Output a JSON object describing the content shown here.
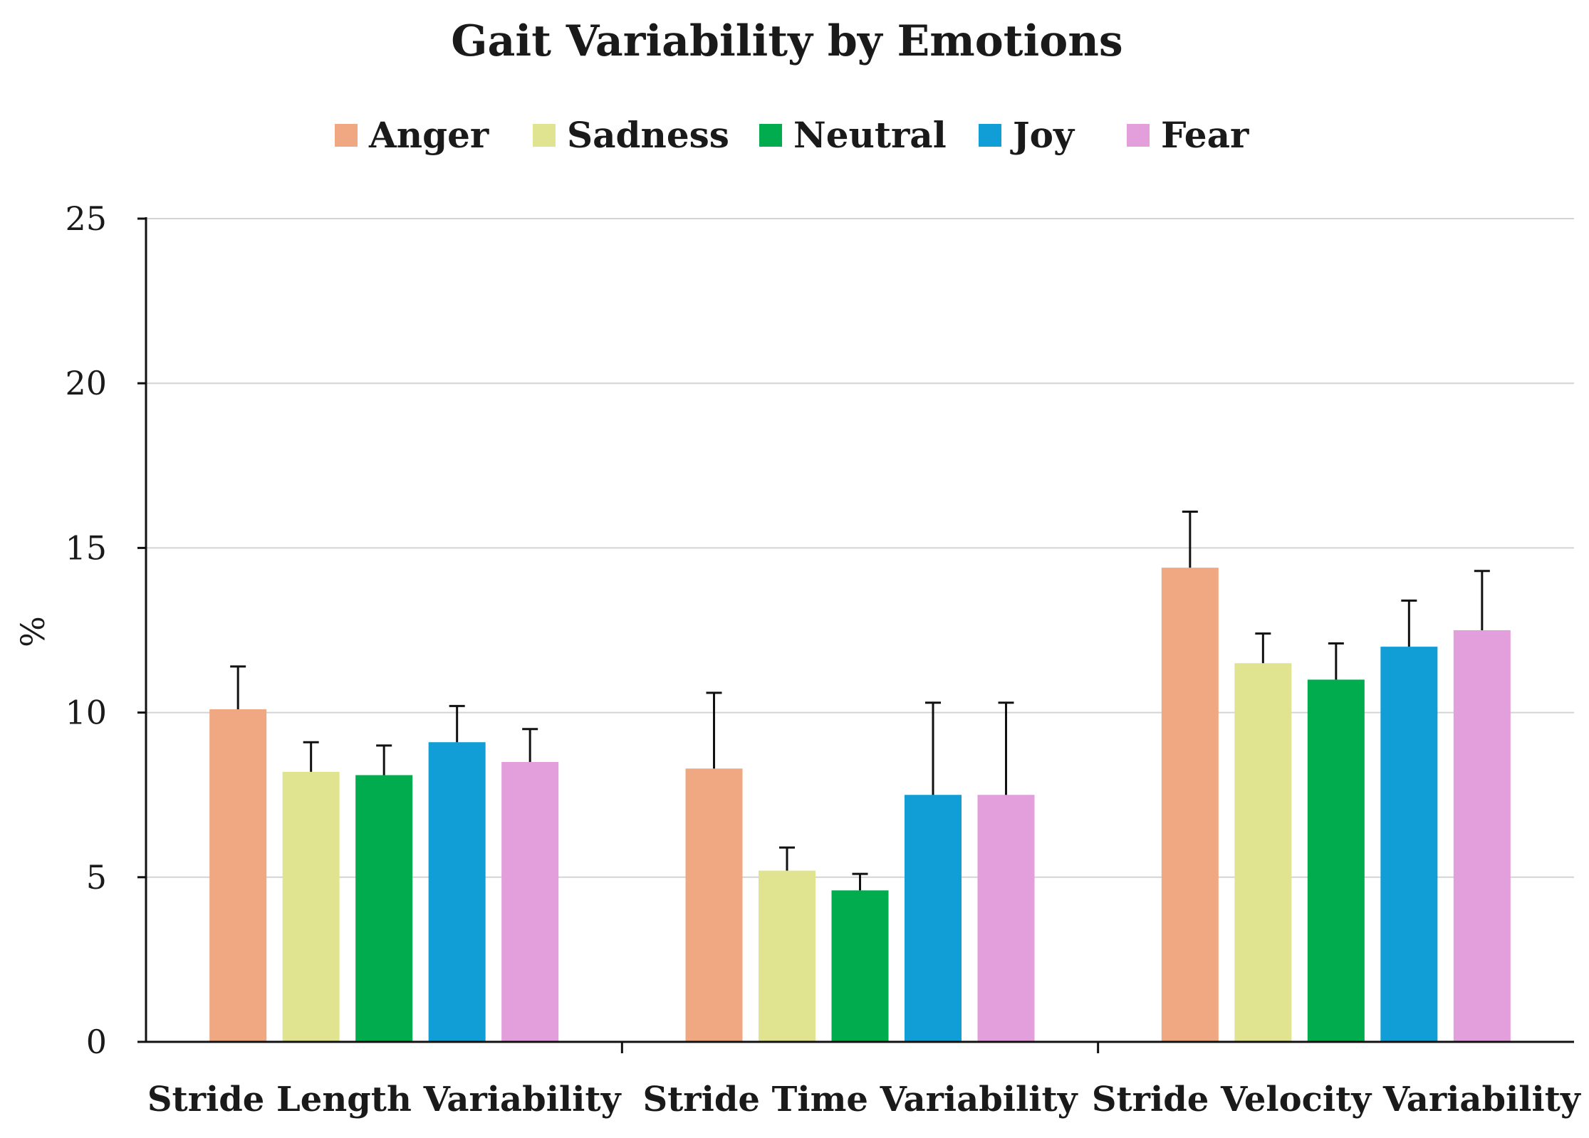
{
  "chart_data": {
    "type": "bar",
    "title": "Gait Variability  by Emotions",
    "xlabel": "",
    "ylabel": "%",
    "ylim": [
      0,
      25
    ],
    "yticks": [
      0,
      5,
      10,
      15,
      20,
      25
    ],
    "grid": true,
    "legend_position": "top",
    "categories": [
      "Stride Length Variability",
      "Stride Time Variability",
      "Stride Velocity Variability"
    ],
    "series": [
      {
        "name": "Anger",
        "color": "#F0A882",
        "values": [
          10.1,
          8.3,
          14.4
        ],
        "errors": [
          1.3,
          2.3,
          1.7
        ]
      },
      {
        "name": "Sadness",
        "color": "#E0E490",
        "values": [
          8.2,
          5.2,
          11.5
        ],
        "errors": [
          0.9,
          0.7,
          0.9
        ]
      },
      {
        "name": "Neutral",
        "color": "#00AC4E",
        "values": [
          8.1,
          4.6,
          11.0
        ],
        "errors": [
          0.9,
          0.5,
          1.1
        ]
      },
      {
        "name": "Joy",
        "color": "#119DD6",
        "values": [
          9.1,
          7.5,
          12.0
        ],
        "errors": [
          1.1,
          2.8,
          1.4
        ]
      },
      {
        "name": "Fear",
        "color": "#E39EDC",
        "values": [
          8.5,
          7.5,
          12.5
        ],
        "errors": [
          1.0,
          2.8,
          1.8
        ]
      }
    ]
  }
}
